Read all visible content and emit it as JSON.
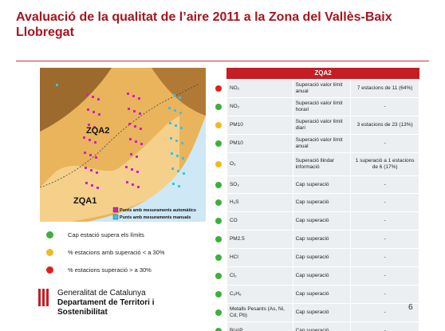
{
  "header": {
    "title": "Avaluació de la qualitat de l’aire 2011 a la Zona del Vallès-Baix Llobregat"
  },
  "map": {
    "zone_labels": [
      "ZQA2",
      "ZQA1"
    ],
    "legend": [
      {
        "label": "Punts amb mesuraments automàtics",
        "color": "#d41fc4"
      },
      {
        "label": "Punts amb mesuraments manuals",
        "color": "#35c3ec"
      }
    ]
  },
  "status_legend": [
    {
      "label": "Cap estació supera els límits",
      "color": "#3cb03c"
    },
    {
      "label": "% estacions amb superació < a 30%",
      "color": "#f2b822"
    },
    {
      "label": "% estacions superació > a 30%",
      "color": "#e0201c"
    }
  ],
  "table": {
    "title": "ZQA2",
    "rows": [
      {
        "color": "#e0201c",
        "pollutant": "NO₂",
        "criterion": "Superació valor límit anual",
        "result": "7 estacions de 11 (64%)"
      },
      {
        "color": "#3cb03c",
        "pollutant": "NO₂",
        "criterion": "Superació valor límit horari",
        "result": "-"
      },
      {
        "color": "#f2b822",
        "pollutant": "PM10",
        "criterion": "Superació valor límit diari",
        "result": "3 estacions de 23 (13%)"
      },
      {
        "color": "#3cb03c",
        "pollutant": "PM10",
        "criterion": "Superació valor límit anual",
        "result": "-"
      },
      {
        "color": "#f2b822",
        "pollutant": "O₃",
        "criterion": "Superació llindar informació",
        "result": "1 superació a 1 estacions de 6 (17%)"
      },
      {
        "color": "#3cb03c",
        "pollutant": "SO₂",
        "criterion": "Cap superació",
        "result": "-"
      },
      {
        "color": "#3cb03c",
        "pollutant": "H₂S",
        "criterion": "Cap superació",
        "result": "-"
      },
      {
        "color": "#3cb03c",
        "pollutant": "CO",
        "criterion": "Cap superació",
        "result": "-"
      },
      {
        "color": "#3cb03c",
        "pollutant": "PM2.5",
        "criterion": "Cap superació",
        "result": "-"
      },
      {
        "color": "#3cb03c",
        "pollutant": "HCl",
        "criterion": "Cap superació",
        "result": "-"
      },
      {
        "color": "#3cb03c",
        "pollutant": "Cl₂",
        "criterion": "Cap superació",
        "result": "-"
      },
      {
        "color": "#3cb03c",
        "pollutant": "C₆H₆",
        "criterion": "Cap superació",
        "result": "-"
      },
      {
        "color": "#3cb03c",
        "pollutant": "Metalls Pesants (As, Ni, Cd, Pb)",
        "criterion": "Cap superació",
        "result": "-"
      },
      {
        "color": "#3cb03c",
        "pollutant": "B(a)P",
        "criterion": "Cap superació",
        "result": "-"
      }
    ]
  },
  "footer": {
    "org": "Generalitat de Catalunya",
    "department": "Departament de Territori i Sostenibilitat",
    "page": "6"
  }
}
